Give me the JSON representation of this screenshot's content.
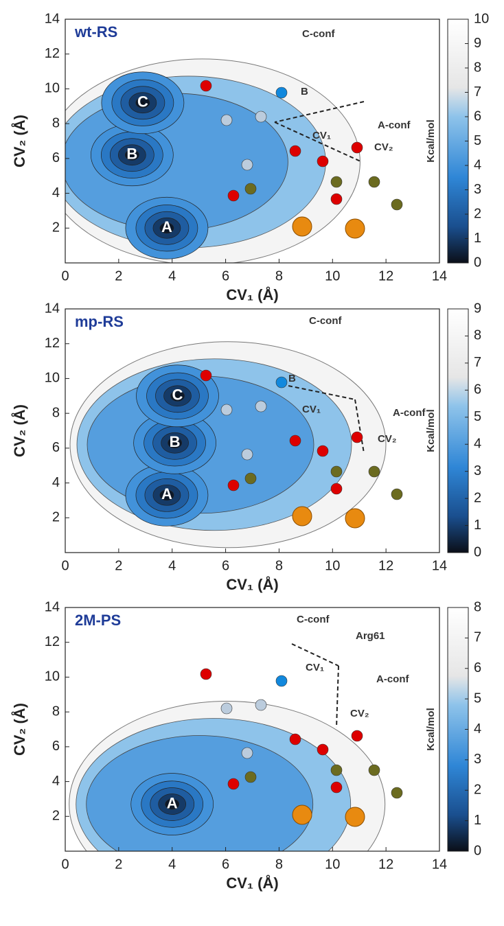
{
  "chart_data": [
    {
      "type": "contour",
      "title": "wt-RS",
      "xlabel": "CV₁ (Å)",
      "ylabel": "CV₂ (Å)",
      "colorbar_label": "Kcal/mol",
      "xlim": [
        0,
        14
      ],
      "ylim": [
        0,
        14
      ],
      "xticks": [
        0,
        2,
        4,
        6,
        8,
        10,
        12,
        14
      ],
      "yticks": [
        2,
        4,
        6,
        8,
        10,
        12,
        14
      ],
      "zlim": [
        0,
        10
      ],
      "zticks": [
        0,
        1,
        2,
        3,
        4,
        5,
        6,
        7,
        8,
        9,
        10
      ],
      "basins": [
        {
          "label": "A",
          "x": 3.8,
          "y": 2.0
        },
        {
          "label": "B",
          "x": 2.5,
          "y": 6.2
        },
        {
          "label": "C",
          "x": 2.9,
          "y": 9.2
        }
      ],
      "annotations": [
        "C-conf",
        "B",
        "A-conf",
        "CV₁",
        "CV₂"
      ]
    },
    {
      "type": "contour",
      "title": "mp-RS",
      "xlabel": "CV₁ (Å)",
      "ylabel": "CV₂ (Å)",
      "colorbar_label": "Kcal/mol",
      "xlim": [
        0,
        14
      ],
      "ylim": [
        0,
        14
      ],
      "xticks": [
        0,
        2,
        4,
        6,
        8,
        10,
        12,
        14
      ],
      "yticks": [
        2,
        4,
        6,
        8,
        10,
        12,
        14
      ],
      "zlim": [
        0,
        9
      ],
      "zticks": [
        0,
        1,
        2,
        3,
        4,
        5,
        6,
        7,
        8,
        9
      ],
      "basins": [
        {
          "label": "A",
          "x": 3.8,
          "y": 3.3
        },
        {
          "label": "B",
          "x": 4.1,
          "y": 6.3
        },
        {
          "label": "C",
          "x": 4.2,
          "y": 9.0
        }
      ],
      "annotations": [
        "C-conf",
        "B",
        "CV₁",
        "A-conf",
        "CV₂"
      ]
    },
    {
      "type": "contour",
      "title": "2M-PS",
      "xlabel": "CV₁ (Å)",
      "ylabel": "CV₂ (Å)",
      "colorbar_label": "Kcal/mol",
      "xlim": [
        0,
        14
      ],
      "ylim": [
        0,
        14
      ],
      "xticks": [
        0,
        2,
        4,
        6,
        8,
        10,
        12,
        14
      ],
      "yticks": [
        2,
        4,
        6,
        8,
        10,
        12,
        14
      ],
      "zlim": [
        0,
        8
      ],
      "zticks": [
        0,
        1,
        2,
        3,
        4,
        5,
        6,
        7,
        8
      ],
      "basins": [
        {
          "label": "A",
          "x": 4.0,
          "y": 2.7
        }
      ],
      "annotations": [
        "C-conf",
        "Arg61",
        "CV₁",
        "A-conf",
        "CV₂"
      ]
    }
  ]
}
